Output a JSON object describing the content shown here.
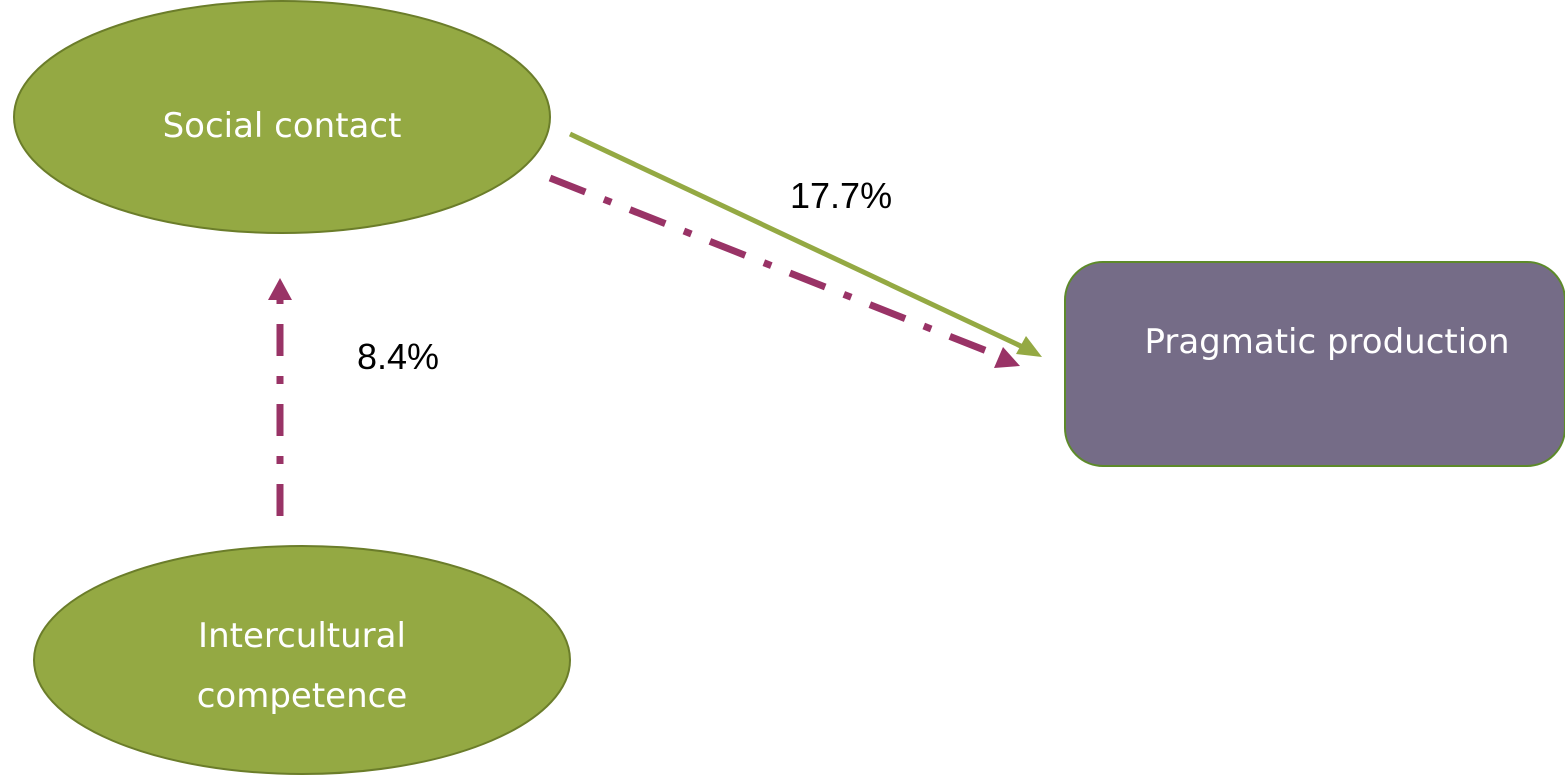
{
  "colors": {
    "ellipse_fill": "#94a943",
    "ellipse_stroke": "#6b7d2a",
    "box_fill": "#756c87",
    "box_stroke": "#5d8a2a",
    "arrow_green": "#94a943",
    "arrow_dashed": "#993366",
    "text_on_node": "#ffffff",
    "label_text": "#000000"
  },
  "nodes": {
    "social_contact": {
      "label": "Social contact"
    },
    "intercultural_competence": {
      "line1": "Intercultural",
      "line2": "competence"
    },
    "pragmatic_production": {
      "label": "Pragmatic production"
    }
  },
  "edges": {
    "social_to_pragmatic": {
      "label": "17.7%",
      "style": "solid"
    },
    "intercultural_to_social": {
      "label": "8.4%",
      "style": "dash-dot"
    },
    "social_to_pragmatic_indirect": {
      "style": "dash-dot"
    }
  }
}
